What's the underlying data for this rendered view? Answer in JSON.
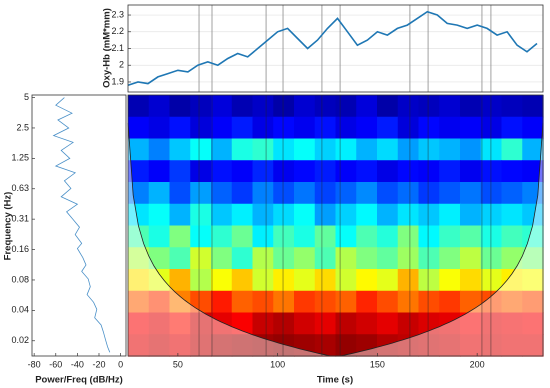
{
  "chart_data": [
    {
      "type": "line",
      "ylabel": "Oxy-Hb (mM*mm)",
      "color": "#1f77b4",
      "grid": true,
      "xlim": [
        25,
        233
      ],
      "ylim": [
        1.84,
        2.36
      ],
      "yticks": [
        1.9,
        2,
        2.1,
        2.2,
        2.3
      ],
      "events": [
        60.6,
        67.1,
        94.2,
        102.7,
        122.2,
        131.3,
        166.3,
        175.4,
        202.4,
        206.9
      ],
      "x": [
        25,
        30,
        35,
        40,
        45,
        50,
        55,
        60,
        65,
        70,
        75,
        80,
        85,
        90,
        95,
        100,
        105,
        110,
        115,
        120,
        125,
        130,
        135,
        140,
        145,
        150,
        155,
        160,
        165,
        170,
        175,
        180,
        185,
        190,
        195,
        200,
        205,
        210,
        215,
        220,
        225,
        230
      ],
      "y": [
        1.88,
        1.9,
        1.89,
        1.93,
        1.95,
        1.97,
        1.96,
        2.0,
        2.02,
        2.0,
        2.04,
        2.07,
        2.05,
        2.1,
        2.15,
        2.2,
        2.22,
        2.16,
        2.1,
        2.15,
        2.22,
        2.28,
        2.2,
        2.12,
        2.15,
        2.2,
        2.18,
        2.22,
        2.24,
        2.28,
        2.32,
        2.3,
        2.25,
        2.24,
        2.22,
        2.24,
        2.22,
        2.18,
        2.2,
        2.12,
        2.08,
        2.13
      ]
    },
    {
      "type": "spectrum",
      "xlabel": "Power/Freq (dB/Hz)",
      "ylabel": "Frequency (Hz)",
      "color": "#4a90c8",
      "log_y": true,
      "xlim": [
        -82,
        5
      ],
      "xticks": [
        -80,
        -60,
        -40,
        -20,
        0
      ],
      "ylim": [
        0.0138,
        5.3
      ],
      "yticks": [
        5,
        2.5,
        1.25,
        {
          "value": 0.625,
          "label": "0.63"
        },
        {
          "value": 0.3125,
          "label": "0.31"
        },
        {
          "value": 0.15625,
          "label": "0.16"
        },
        {
          "value": 0.078125,
          "label": "0.08"
        },
        {
          "value": 0.0390625,
          "label": "0.04"
        },
        {
          "value": 0.01953125,
          "label": "0.02"
        }
      ],
      "y": [
        5,
        4.2,
        3.5,
        3,
        2.5,
        2.1,
        1.8,
        1.5,
        1.25,
        1.05,
        0.9,
        0.75,
        0.63,
        0.52,
        0.44,
        0.37,
        0.31,
        0.26,
        0.22,
        0.18,
        0.16,
        0.13,
        0.11,
        0.095,
        0.08,
        0.067,
        0.056,
        0.047,
        0.04,
        0.033,
        0.028,
        0.024,
        0.02,
        0.017,
        0.015
      ],
      "x": [
        -52,
        -60,
        -45,
        -58,
        -48,
        -62,
        -44,
        -55,
        -47,
        -60,
        -42,
        -52,
        -46,
        -55,
        -40,
        -50,
        -44,
        -38,
        -42,
        -36,
        -40,
        -35,
        -32,
        -36,
        -30,
        -28,
        -31,
        -25,
        -22,
        -24,
        -18,
        -16,
        -14,
        -12,
        -10
      ]
    },
    {
      "type": "heatmap",
      "xlabel": "Time (s)",
      "log_y": true,
      "colormap": "jet",
      "xlim": [
        25,
        233
      ],
      "xticks": [
        50,
        100,
        150,
        200
      ],
      "ylim": [
        0.0138,
        5.3
      ],
      "events": [
        60.6,
        67.1,
        94.2,
        102.7,
        122.2,
        131.3,
        166.3,
        175.4,
        202.4,
        206.9
      ],
      "z": [
        [
          0.05,
          0.08,
          0.04,
          0.06,
          0.09,
          0.05,
          0.07,
          0.04,
          0.08,
          0.06,
          0.05,
          0.09,
          0.04,
          0.07,
          0.06,
          0.08,
          0.05,
          0.07,
          0.06,
          0.05
        ],
        [
          0.12,
          0.1,
          0.14,
          0.09,
          0.12,
          0.15,
          0.1,
          0.13,
          0.11,
          0.14,
          0.1,
          0.12,
          0.15,
          0.09,
          0.13,
          0.11,
          0.12,
          0.1,
          0.14,
          0.12
        ],
        [
          0.3,
          0.25,
          0.32,
          0.38,
          0.3,
          0.4,
          0.42,
          0.35,
          0.38,
          0.33,
          0.36,
          0.3,
          0.34,
          0.28,
          0.32,
          0.3,
          0.27,
          0.35,
          0.42,
          0.3
        ],
        [
          0.15,
          0.12,
          0.18,
          0.1,
          0.14,
          0.12,
          0.16,
          0.11,
          0.13,
          0.15,
          0.12,
          0.14,
          0.1,
          0.13,
          0.12,
          0.15,
          0.11,
          0.14,
          0.13,
          0.12
        ],
        [
          0.25,
          0.3,
          0.2,
          0.28,
          0.22,
          0.18,
          0.25,
          0.2,
          0.24,
          0.19,
          0.22,
          0.26,
          0.2,
          0.23,
          0.18,
          0.21,
          0.24,
          0.2,
          0.22,
          0.25
        ],
        [
          0.35,
          0.38,
          0.3,
          0.4,
          0.32,
          0.36,
          0.3,
          0.34,
          0.38,
          0.28,
          0.33,
          0.37,
          0.3,
          0.35,
          0.32,
          0.36,
          0.3,
          0.33,
          0.35,
          0.32
        ],
        [
          0.45,
          0.4,
          0.5,
          0.38,
          0.42,
          0.48,
          0.36,
          0.44,
          0.4,
          0.47,
          0.38,
          0.45,
          0.41,
          0.5,
          0.37,
          0.43,
          0.46,
          0.4,
          0.44,
          0.42
        ],
        [
          0.55,
          0.5,
          0.45,
          0.58,
          0.5,
          0.42,
          0.55,
          0.48,
          0.52,
          0.45,
          0.55,
          0.5,
          0.47,
          0.53,
          0.45,
          0.5,
          0.56,
          0.48,
          0.52,
          0.5
        ],
        [
          0.65,
          0.6,
          0.7,
          0.55,
          0.62,
          0.68,
          0.58,
          0.64,
          0.6,
          0.66,
          0.58,
          0.63,
          0.6,
          0.7,
          0.56,
          0.62,
          0.66,
          0.6,
          0.64,
          0.62
        ],
        [
          0.78,
          0.82,
          0.75,
          0.8,
          0.85,
          0.78,
          0.8,
          0.76,
          0.82,
          0.8,
          0.78,
          0.84,
          0.8,
          0.76,
          0.8,
          0.82,
          0.78,
          0.8,
          0.78,
          0.8
        ],
        [
          0.88,
          0.9,
          0.86,
          0.92,
          0.9,
          0.88,
          0.93,
          0.95,
          0.92,
          0.9,
          0.94,
          0.92,
          0.9,
          0.93,
          0.91,
          0.9,
          0.88,
          0.9,
          0.89,
          0.88
        ],
        [
          0.9,
          0.92,
          0.9,
          0.93,
          0.95,
          0.96,
          0.97,
          0.98,
          0.97,
          0.96,
          0.98,
          0.97,
          0.95,
          0.94,
          0.93,
          0.92,
          0.9,
          0.91,
          0.9,
          0.9
        ]
      ]
    }
  ]
}
